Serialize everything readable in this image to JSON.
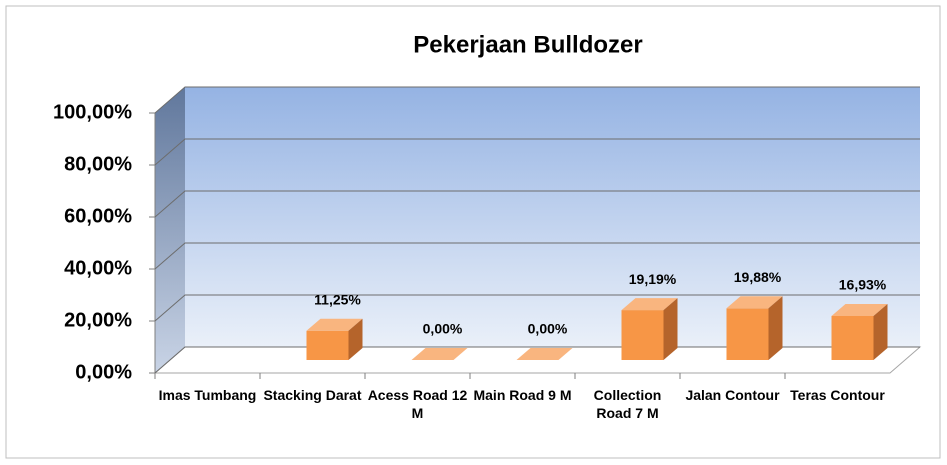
{
  "chart_data": {
    "type": "bar3d",
    "title": "Pekerjaan Bulldozer",
    "categories": [
      "Imas Tumbang",
      "Stacking Darat",
      "Acess Road 12 M",
      "Main Road 9 M",
      "Collection Road 7 M",
      "Jalan Contour",
      "Teras Contour"
    ],
    "values": [
      null,
      11.25,
      0,
      0,
      19.19,
      19.88,
      16.93
    ],
    "value_labels": [
      null,
      "11,25%",
      "0,00%",
      "0,00%",
      "19,19%",
      "19,88%",
      "16,93%"
    ],
    "color": "#f79646",
    "ylim": [
      0,
      100
    ],
    "yticks": [
      {
        "value": 0,
        "label": "0,00%"
      },
      {
        "value": 20,
        "label": "20,00%"
      },
      {
        "value": 40,
        "label": "40,00%"
      },
      {
        "value": 60,
        "label": "60,00%"
      },
      {
        "value": 80,
        "label": "80,00%"
      },
      {
        "value": 100,
        "label": "100,00%"
      }
    ],
    "grid": true
  }
}
